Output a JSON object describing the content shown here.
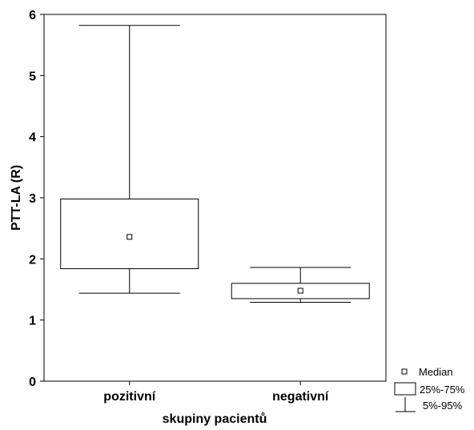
{
  "chart_data": {
    "type": "box",
    "categories": [
      "pozitivní",
      "negativní"
    ],
    "xlabel": "skupiny pacientů",
    "ylabel": "PTT-LA (R)",
    "ylim": [
      0,
      6
    ],
    "yticks": [
      0,
      1,
      2,
      3,
      4,
      5,
      6
    ],
    "grid": false,
    "legend_position": "bottom-right",
    "boxes": [
      {
        "category": "pozitivní",
        "p5": 1.44,
        "q1": 1.84,
        "median": 2.36,
        "q3": 2.98,
        "p95": 5.82
      },
      {
        "category": "negativní",
        "p5": 1.29,
        "q1": 1.35,
        "median": 1.48,
        "q3": 1.6,
        "p95": 1.86
      }
    ],
    "legend": {
      "median": "Median",
      "box": "25%-75%",
      "whisker": "5%-95%"
    }
  }
}
